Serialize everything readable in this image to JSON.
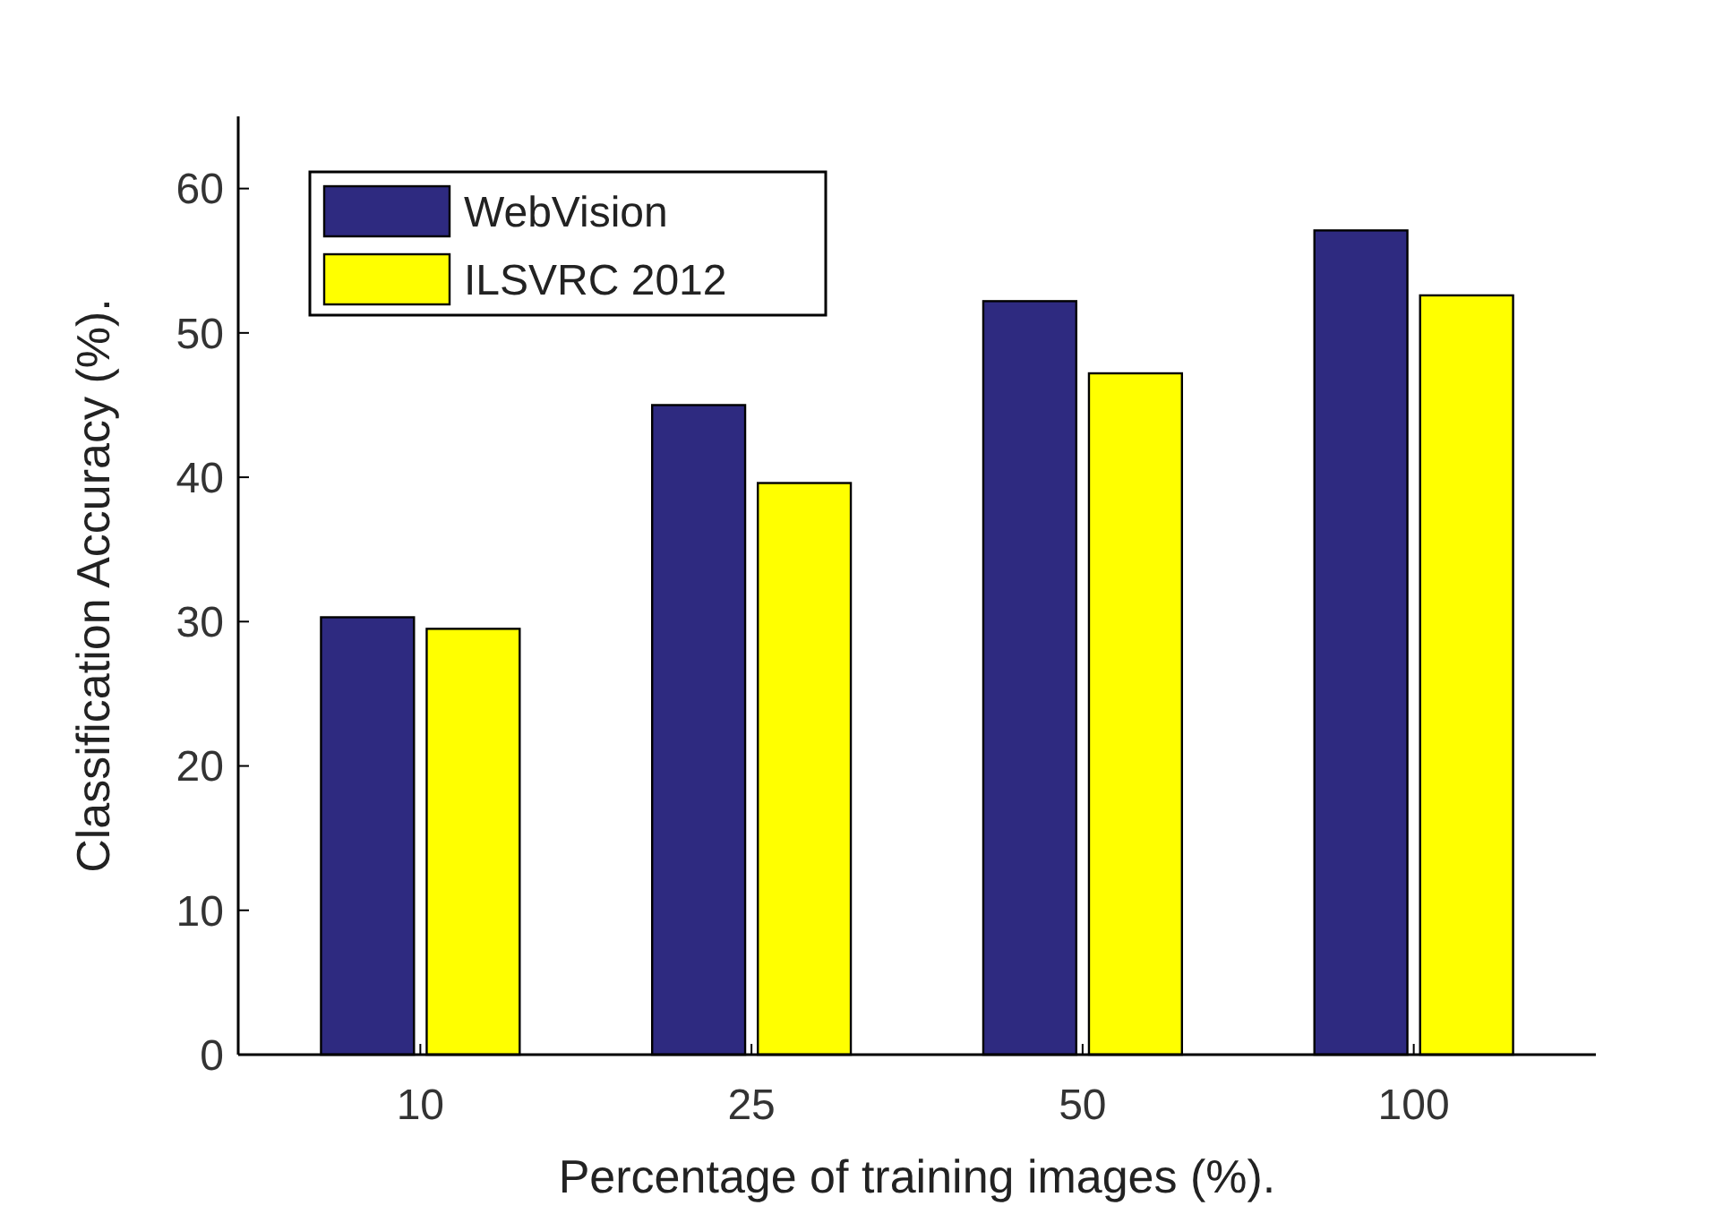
{
  "chart_data": {
    "type": "bar",
    "xlabel": "Percentage of training images (%).",
    "ylabel": "Classification Accuracy (%).",
    "categories": [
      "10",
      "25",
      "50",
      "100"
    ],
    "series": [
      {
        "name": "WebVision",
        "color": "#2e2a80",
        "values": [
          30.3,
          45.0,
          52.2,
          57.1
        ]
      },
      {
        "name": "ILSVRC 2012",
        "color": "#ffff00",
        "values": [
          29.5,
          39.6,
          47.2,
          52.6
        ]
      }
    ],
    "ylim": [
      0,
      65
    ],
    "yticks": [
      0,
      10,
      20,
      30,
      40,
      50,
      60
    ],
    "grid": false,
    "legend": "top left"
  }
}
